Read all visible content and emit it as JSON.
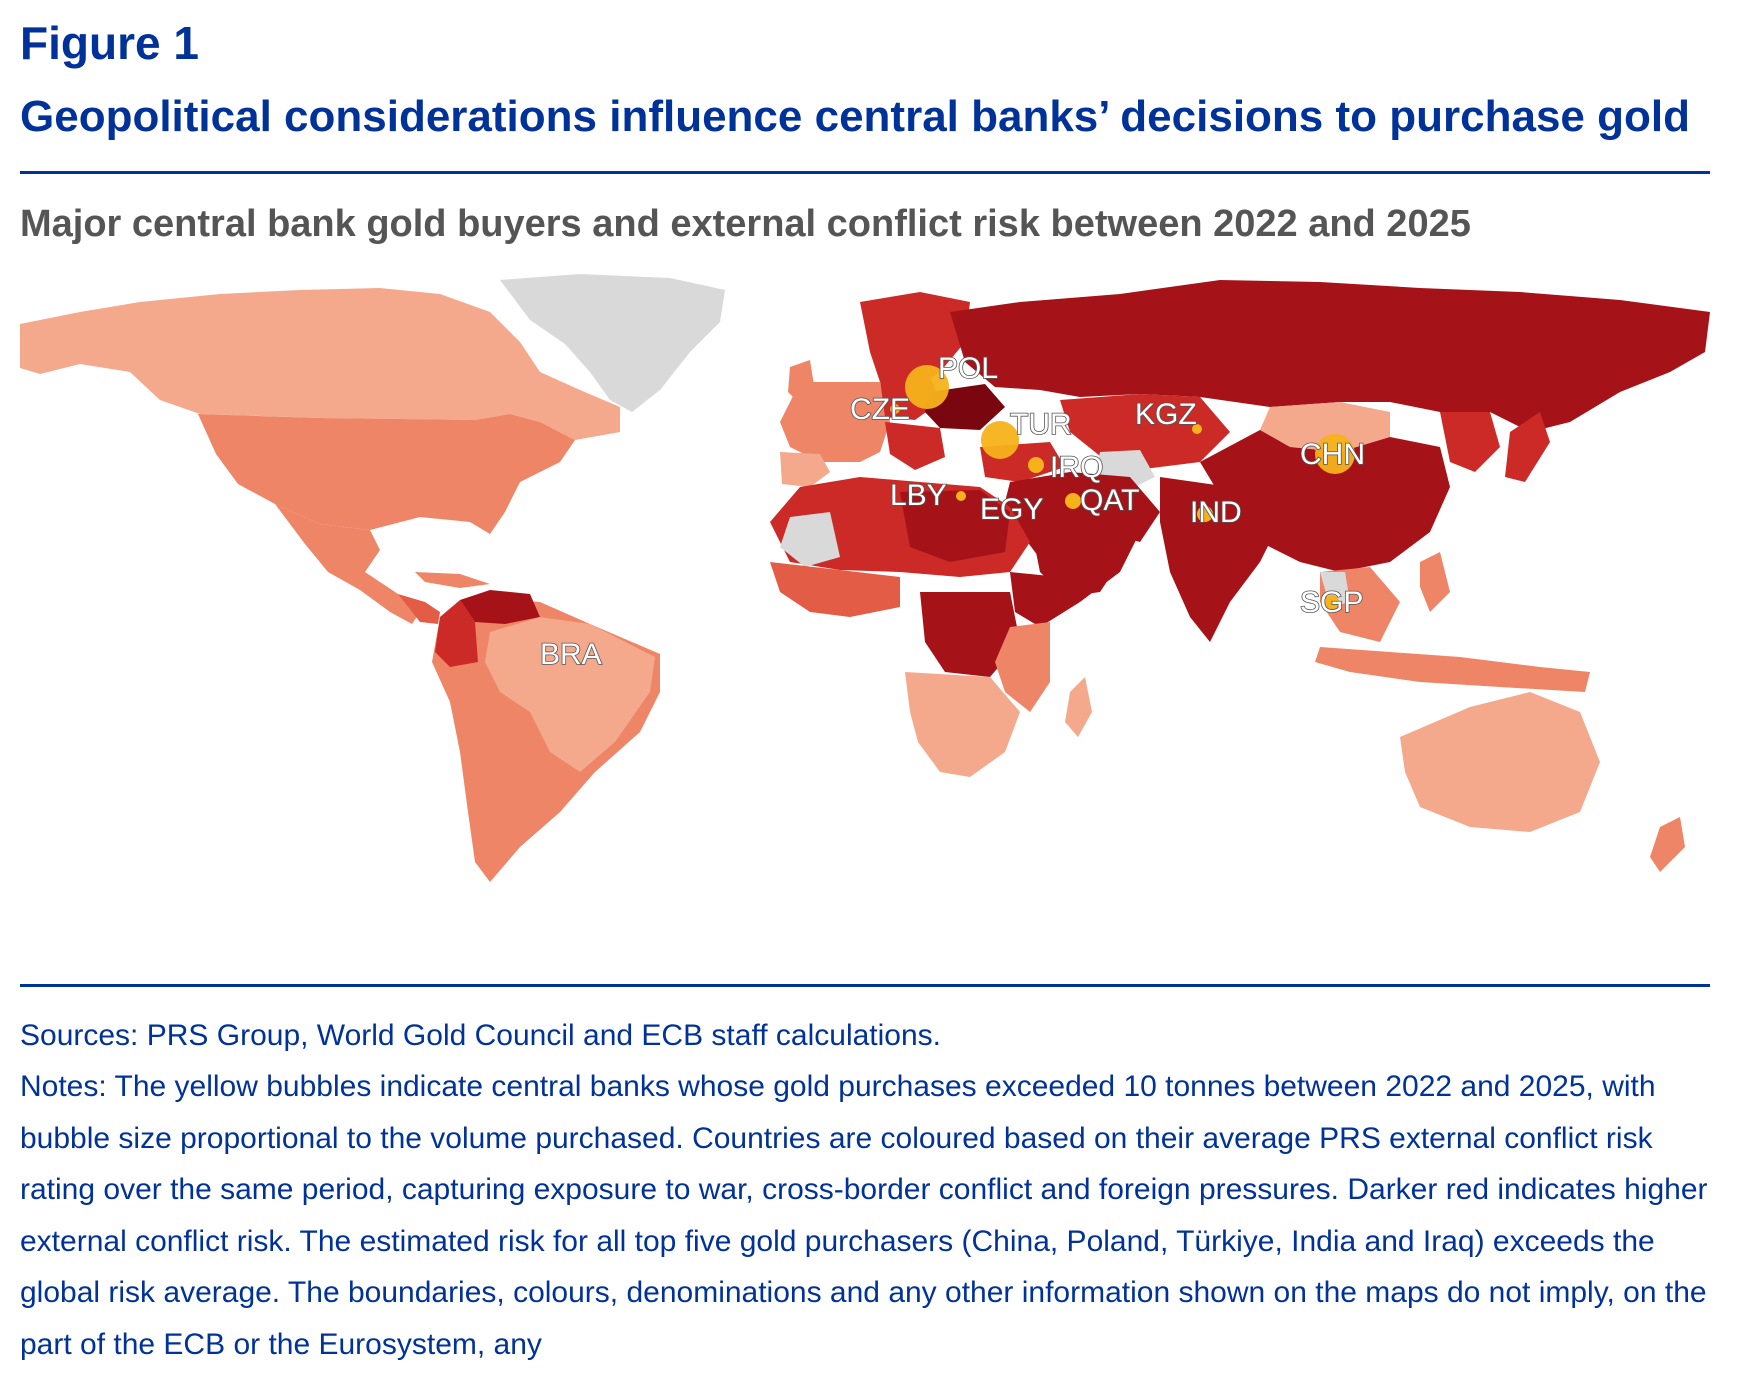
{
  "figure": {
    "label": "Figure 1",
    "title": "Geopolitical considerations influence central banks’ decisions to purchase gold"
  },
  "chart_title": "Major central bank gold buyers and external conflict risk between 2022 and 2025",
  "colors": {
    "accent": "#003299",
    "bubble": "#f5b21a",
    "no_data": "#d9d9d9",
    "risk_scale": [
      "#f4a88c",
      "#ee8566",
      "#e35c45",
      "#cc2a26",
      "#a51218",
      "#7a0710"
    ]
  },
  "chart_data": {
    "type": "bubble-choropleth-map",
    "bubble_countries": [
      {
        "code": "POL",
        "name": "Poland"
      },
      {
        "code": "CZE",
        "name": "Czech Republic"
      },
      {
        "code": "TUR",
        "name": "Türkiye"
      },
      {
        "code": "KGZ",
        "name": "Kyrgyzstan"
      },
      {
        "code": "IRQ",
        "name": "Iraq"
      },
      {
        "code": "LBY",
        "name": "Libya"
      },
      {
        "code": "EGY",
        "name": "Egypt"
      },
      {
        "code": "QAT",
        "name": "Qatar"
      },
      {
        "code": "IND",
        "name": "India"
      },
      {
        "code": "CHN",
        "name": "China"
      },
      {
        "code": "SGP",
        "name": "Singapore"
      },
      {
        "code": "BRA",
        "name": "Brazil"
      }
    ],
    "color_encoding": "Darker red indicates higher external conflict risk"
  },
  "sources": "Sources: PRS Group, World Gold Council and ECB staff calculations.",
  "notes": "Notes: The yellow bubbles indicate central banks whose gold purchases exceeded 10 tonnes between 2022 and 2025, with bubble size proportional to the volume purchased. Countries are coloured based on their average PRS external conflict risk rating over the same period, capturing exposure to war, cross-border conflict and foreign pressures. Darker red indicates higher external conflict risk. The estimated risk for all top five gold purchasers (China, Poland, Türkiye, India and Iraq) exceeds the global risk average. The boundaries, colours, denominations and any other information shown on the maps do not imply, on the part of the ECB or the Eurosystem, any"
}
